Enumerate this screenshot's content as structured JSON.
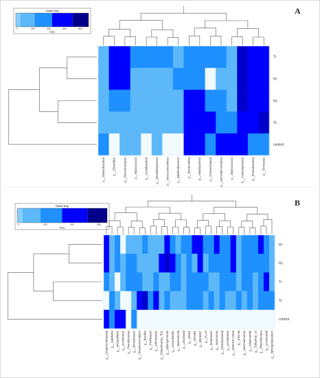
{
  "chart_data": [
    {
      "type": "heatmap",
      "panel_label": "A",
      "color_key": {
        "title": "Color Key",
        "xlabel": "Value",
        "ticks": [
          "0",
          "200",
          "400",
          "600",
          "800"
        ],
        "colors": [
          "#87cefa",
          "#5cb8f8",
          "#1e90ff",
          "#0000ff",
          "#0000cd",
          "#00008b"
        ]
      },
      "rows": [
        "Tr",
        "Hr",
        "Hc",
        "Tc",
        "control"
      ],
      "columns": [
        "p__Patescibacteria",
        "p__Chloroflexi",
        "p__Planctomycetes",
        "p__Myxococcota",
        "p__Acidobacteria",
        "p__Desulfobacterota",
        "p__Verrucomicrobiota",
        "p__Bdellovibrionota",
        "p__Bacteroidota",
        "p__Halobacterota",
        "p__Crenarchaeota",
        "p__Gemmatimonadota",
        "p__Deinococcota",
        "p__Actinobacteriota",
        "p__Proteobacteria",
        "p__Firmicutes"
      ],
      "values": [
        [
          1,
          3,
          3,
          2,
          2,
          2,
          2,
          1,
          2,
          2,
          2,
          2,
          1,
          4,
          3,
          3
        ],
        [
          1,
          3,
          3,
          1,
          1,
          1,
          1,
          2,
          2,
          2,
          0,
          1,
          1,
          4,
          3,
          3
        ],
        [
          1,
          2,
          2,
          1,
          1,
          1,
          1,
          1,
          3,
          3,
          2,
          2,
          1,
          4,
          3,
          3
        ],
        [
          1,
          1,
          1,
          1,
          1,
          1,
          1,
          1,
          3,
          3,
          3,
          2,
          2,
          3,
          3,
          4
        ],
        [
          2,
          0,
          1,
          1,
          0,
          1,
          0,
          0,
          3,
          3,
          2,
          3,
          3,
          3,
          2,
          2
        ]
      ]
    },
    {
      "type": "heatmap",
      "panel_label": "B",
      "color_key": {
        "title": "Color Key",
        "xlabel": "Value",
        "ticks": [
          "0",
          "200",
          "400",
          "600"
        ],
        "colors": [
          "#87cefa",
          "#5cb8f8",
          "#1e90ff",
          "#0000ff",
          "#0000cd",
          "#00008b"
        ]
      },
      "rows": [
        "Hr",
        "Hc",
        "Tr",
        "Tc",
        "control"
      ],
      "columns": [
        "g__Longimicrobiaceae",
        "g__Gaiellales",
        "g__unclassified1",
        "g__uncultured1",
        "g__Pseudomonas",
        "g__Ilumatobacter",
        "g__Chryseomicrobium",
        "g__Bacillus",
        "g__Pontibacter",
        "g__Arthrobacter",
        "g__Streptomyces_R11",
        "g__Sphingomonas",
        "g__Nocardioides",
        "g__Marmoricola",
        "g__uncultured",
        "g__MND1",
        "g__WCHB1",
        "g__Ellin6067",
        "g__IS_44",
        "g__Pedobacter",
        "g__Aeromonas",
        "g__MND1bacterial",
        "g__uncultured4",
        "g__JG30-KF-CM45",
        "g__KD4-96",
        "g__Saccharimonas",
        "g__Nakamurella",
        "g__Subgroup_10",
        "g__Rheinheimera",
        "g__uncultured6",
        "g__Sphingobacterium"
      ],
      "values": [
        [
          3,
          1,
          2,
          0,
          1,
          1,
          1,
          2,
          1,
          1,
          1,
          3,
          2,
          1,
          2,
          2,
          3,
          3,
          2,
          2,
          3,
          2,
          2,
          3,
          1,
          2,
          2,
          2,
          3,
          2,
          1
        ],
        [
          3,
          1,
          2,
          1,
          2,
          2,
          1,
          1,
          1,
          1,
          3,
          4,
          3,
          2,
          1,
          2,
          1,
          3,
          1,
          2,
          2,
          2,
          2,
          3,
          1,
          2,
          2,
          2,
          2,
          2,
          1
        ],
        [
          2,
          1,
          0,
          1,
          2,
          2,
          2,
          1,
          1,
          2,
          1,
          1,
          2,
          2,
          1,
          2,
          2,
          2,
          2,
          1,
          1,
          2,
          2,
          2,
          1,
          2,
          2,
          1,
          2,
          3,
          1
        ],
        [
          0,
          2,
          1,
          0,
          0,
          1,
          3,
          4,
          2,
          3,
          1,
          2,
          1,
          1,
          1,
          2,
          2,
          2,
          1,
          2,
          1,
          2,
          1,
          1,
          2,
          1,
          2,
          1,
          2,
          2,
          2
        ],
        [
          3,
          2,
          3,
          3,
          0,
          2,
          0,
          0,
          0,
          0,
          0,
          0,
          0,
          0,
          0,
          0,
          0,
          0,
          0,
          0,
          0,
          0,
          0,
          0,
          0,
          0,
          0,
          0,
          0,
          0,
          0
        ]
      ]
    }
  ]
}
